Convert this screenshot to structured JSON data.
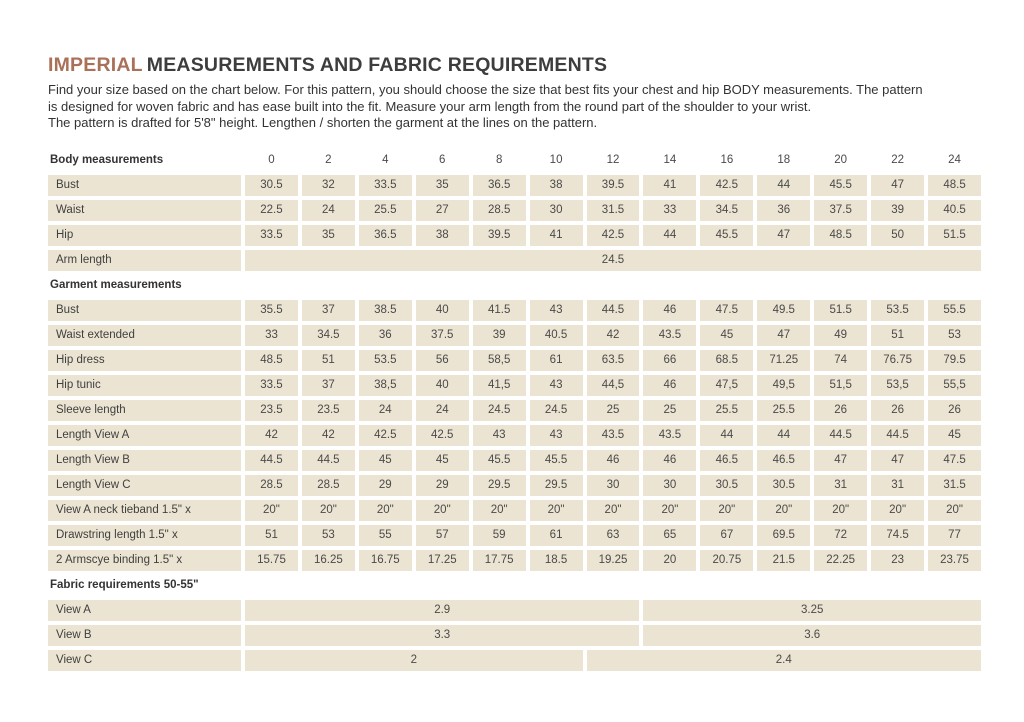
{
  "title": {
    "highlight": "IMPERIAL",
    "rest": "MEASUREMENTS AND FABRIC REQUIREMENTS"
  },
  "intro_lines": [
    "Find your size based on the chart below. For this pattern, you should choose the size that best fits your chest and hip BODY measurements. The pattern",
    "is designed for woven fabric and has ease built into the fit. Measure your arm length from the round part of the shoulder to your wrist.",
    "The pattern is drafted for 5'8\" height. Lengthen / shorten the garment at the lines on the pattern."
  ],
  "colors": {
    "accent": "#aa7159",
    "cell_background": "#ece4d2",
    "text": "#3b3b3b"
  },
  "table": {
    "sizes": [
      "0",
      "2",
      "4",
      "6",
      "8",
      "10",
      "12",
      "14",
      "16",
      "18",
      "20",
      "22",
      "24"
    ],
    "sections": [
      {
        "header_label": "Body measurements",
        "rows": [
          {
            "label": "Bust",
            "values": [
              "30.5",
              "32",
              "33.5",
              "35",
              "36.5",
              "38",
              "39.5",
              "41",
              "42.5",
              "44",
              "45.5",
              "47",
              "48.5"
            ]
          },
          {
            "label": "Waist",
            "values": [
              "22.5",
              "24",
              "25.5",
              "27",
              "28.5",
              "30",
              "31.5",
              "33",
              "34.5",
              "36",
              "37.5",
              "39",
              "40.5"
            ]
          },
          {
            "label": "Hip",
            "values": [
              "33.5",
              "35",
              "36.5",
              "38",
              "39.5",
              "41",
              "42.5",
              "44",
              "45.5",
              "47",
              "48.5",
              "50",
              "51.5"
            ]
          },
          {
            "label": "Arm length",
            "merged_value": "24.5"
          }
        ]
      },
      {
        "header_label": "Garment measurements",
        "rows": [
          {
            "label": "Bust",
            "values": [
              "35.5",
              "37",
              "38.5",
              "40",
              "41.5",
              "43",
              "44.5",
              "46",
              "47.5",
              "49.5",
              "51.5",
              "53.5",
              "55.5"
            ]
          },
          {
            "label": "Waist extended",
            "values": [
              "33",
              "34.5",
              "36",
              "37.5",
              "39",
              "40.5",
              "42",
              "43.5",
              "45",
              "47",
              "49",
              "51",
              "53"
            ]
          },
          {
            "label": "Hip dress",
            "values": [
              "48.5",
              "51",
              "53.5",
              "56",
              "58,5",
              "61",
              "63.5",
              "66",
              "68.5",
              "71.25",
              "74",
              "76.75",
              "79.5"
            ]
          },
          {
            "label": "Hip tunic",
            "values": [
              "33.5",
              "37",
              "38,5",
              "40",
              "41,5",
              "43",
              "44,5",
              "46",
              "47,5",
              "49,5",
              "51,5",
              "53,5",
              "55,5"
            ]
          },
          {
            "label": "Sleeve length",
            "values": [
              "23.5",
              "23.5",
              "24",
              "24",
              "24.5",
              "24.5",
              "25",
              "25",
              "25.5",
              "25.5",
              "26",
              "26",
              "26"
            ]
          },
          {
            "label": "Length View A",
            "values": [
              "42",
              "42",
              "42.5",
              "42.5",
              "43",
              "43",
              "43.5",
              "43.5",
              "44",
              "44",
              "44.5",
              "44.5",
              "45"
            ]
          },
          {
            "label": "Length View B",
            "values": [
              "44.5",
              "44.5",
              "45",
              "45",
              "45.5",
              "45.5",
              "46",
              "46",
              "46.5",
              "46.5",
              "47",
              "47",
              "47.5"
            ]
          },
          {
            "label": "Length View C",
            "values": [
              "28.5",
              "28.5",
              "29",
              "29",
              "29.5",
              "29.5",
              "30",
              "30",
              "30.5",
              "30.5",
              "31",
              "31",
              "31.5"
            ]
          },
          {
            "label": "View A neck tieband 1.5\" x",
            "values": [
              "20\"",
              "20\"",
              "20\"",
              "20\"",
              "20\"",
              "20\"",
              "20\"",
              "20\"",
              "20\"",
              "20\"",
              "20\"",
              "20\"",
              "20\""
            ]
          },
          {
            "label": "Drawstring length 1.5\" x",
            "values": [
              "51",
              "53",
              "55",
              "57",
              "59",
              "61",
              "63",
              "65",
              "67",
              "69.5",
              "72",
              "74.5",
              "77"
            ]
          },
          {
            "label": "2 Armscye binding 1.5\" x",
            "values": [
              "15.75",
              "16.25",
              "16.75",
              "17.25",
              "17.75",
              "18.5",
              "19.25",
              "20",
              "20.75",
              "21.5",
              "22.25",
              "23",
              "23.75"
            ]
          }
        ]
      },
      {
        "header_label": "Fabric requirements 50-55\"",
        "rows": [
          {
            "label": "View A",
            "cells": [
              {
                "value": "2.9",
                "colspan": 7
              },
              {
                "value": "3.25",
                "colspan": 6
              }
            ]
          },
          {
            "label": "View B",
            "cells": [
              {
                "value": "3.3",
                "colspan": 7
              },
              {
                "value": "3.6",
                "colspan": 6
              }
            ]
          },
          {
            "label": "View C",
            "cells": [
              {
                "value": "2",
                "colspan": 6
              },
              {
                "value": "2.4",
                "colspan": 7
              }
            ]
          }
        ]
      }
    ]
  }
}
